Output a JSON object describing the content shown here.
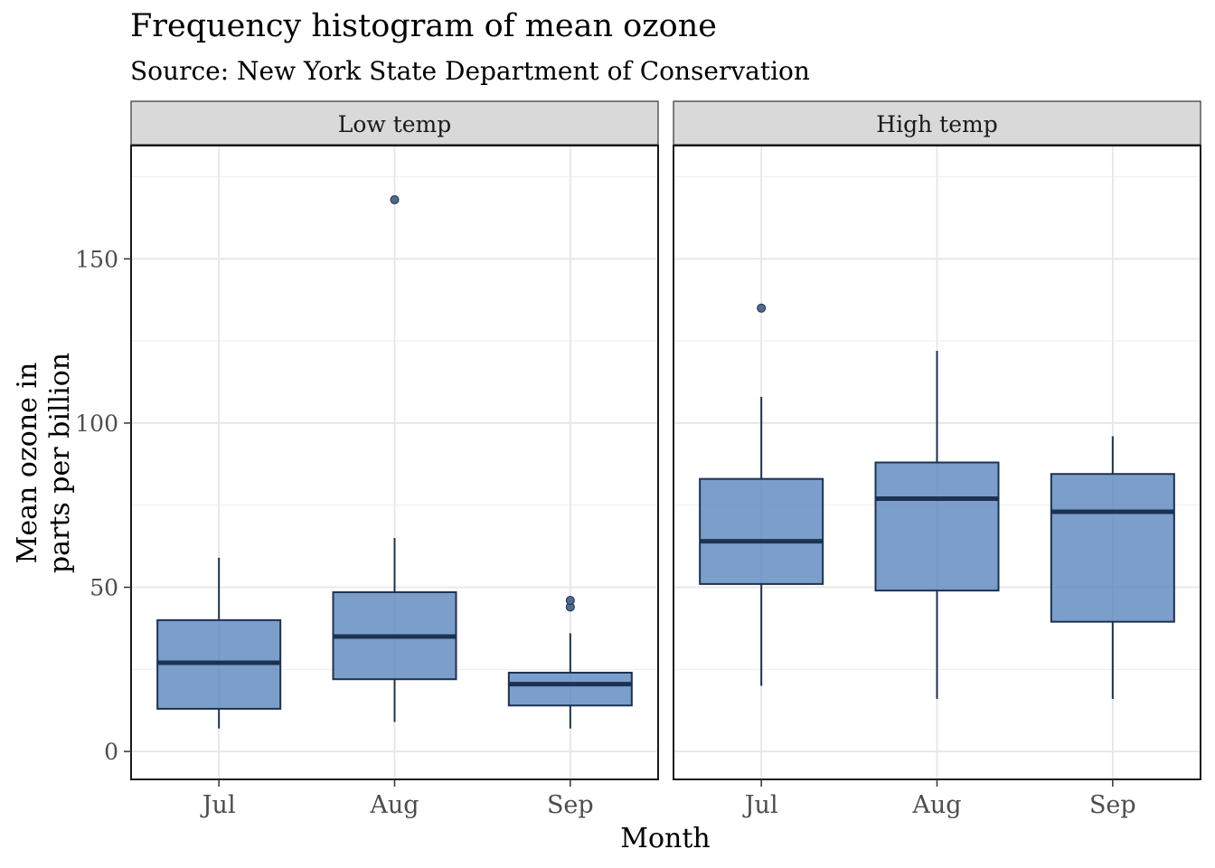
{
  "chart_data": {
    "type": "boxplot",
    "title": "Frequency histogram of mean ozone",
    "subtitle": "Source: New York State Department of Conservation",
    "xlabel": "Month",
    "ylabel_lines": [
      "Mean ozone in",
      "parts per billion"
    ],
    "categories": [
      "Jul",
      "Aug",
      "Sep"
    ],
    "y_ticks": [
      0,
      50,
      100,
      150
    ],
    "ylim": [
      -8.5,
      184.5
    ],
    "grid": true,
    "box_fill": "#5b86bd",
    "box_stroke": "#1c3253",
    "panels": [
      {
        "label": "Low temp",
        "boxes": [
          {
            "category": "Jul",
            "whisker_low": 7,
            "q1": 13,
            "median": 27,
            "q3": 40,
            "whisker_high": 59,
            "outliers": []
          },
          {
            "category": "Aug",
            "whisker_low": 9,
            "q1": 22,
            "median": 35,
            "q3": 48.5,
            "whisker_high": 65,
            "outliers": [
              168
            ]
          },
          {
            "category": "Sep",
            "whisker_low": 7,
            "q1": 14,
            "median": 20.5,
            "q3": 24,
            "whisker_high": 36,
            "outliers": [
              44,
              46
            ]
          }
        ]
      },
      {
        "label": "High temp",
        "boxes": [
          {
            "category": "Jul",
            "whisker_low": 20,
            "q1": 51,
            "median": 64,
            "q3": 83,
            "whisker_high": 108,
            "outliers": [
              135
            ]
          },
          {
            "category": "Aug",
            "whisker_low": 16,
            "q1": 49,
            "median": 77,
            "q3": 88,
            "whisker_high": 122,
            "outliers": []
          },
          {
            "category": "Sep",
            "whisker_low": 16,
            "q1": 39.5,
            "median": 73,
            "q3": 84.5,
            "whisker_high": 96,
            "outliers": []
          }
        ]
      }
    ]
  }
}
